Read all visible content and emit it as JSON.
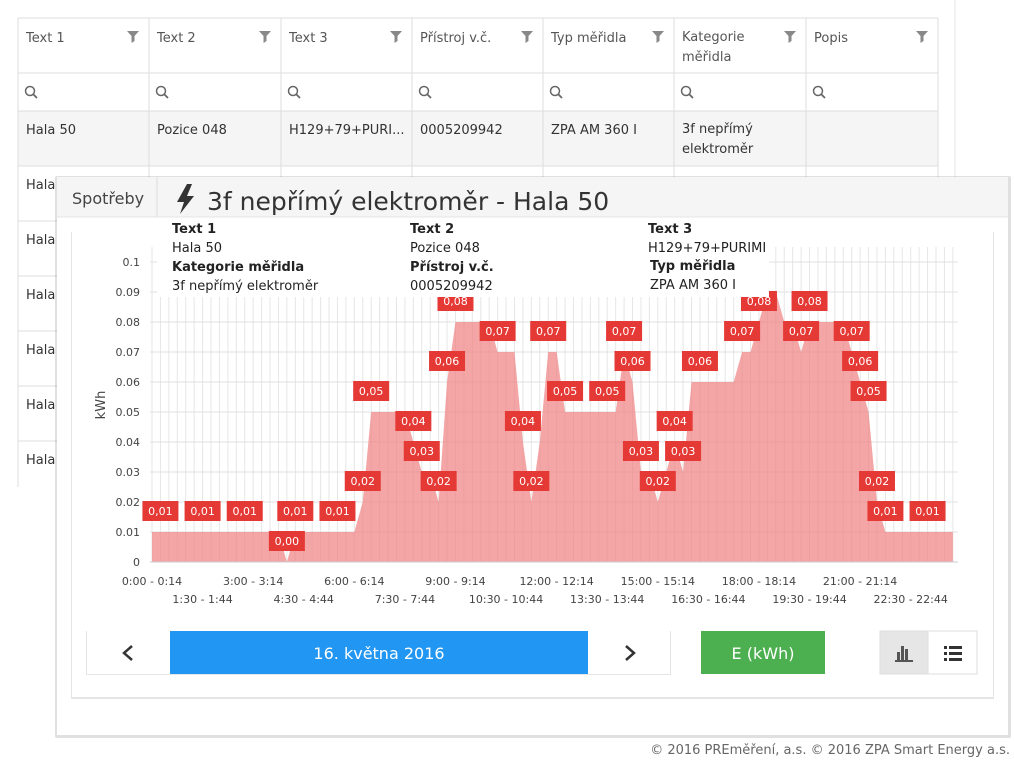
{
  "table": {
    "columns": [
      "Text 1",
      "Text 2",
      "Text 3",
      "Přístroj v.č.",
      "Typ měřidla",
      "Kategorie měřidla",
      "Popis"
    ],
    "rows": [
      [
        "Hala 50",
        "Pozice 048",
        "H129+79+PURI...",
        "0005209942",
        "ZPA AM 360 I",
        "3f nepřímý elektroměr"
      ],
      [
        "Hala"
      ],
      [
        "Hala"
      ],
      [
        "Hala"
      ],
      [
        "Hala"
      ],
      [
        "Hala"
      ],
      [
        "Hala"
      ]
    ]
  },
  "modal": {
    "tab": "Spotřeby",
    "title": "3f nepřímý elektroměr - Hala 50",
    "info": [
      {
        "label": "Text 1",
        "value": "Hala 50"
      },
      {
        "label": "Kategorie měřidla",
        "value": "3f nepřímý elektroměr"
      },
      {
        "label": "Text 2",
        "value": "Pozice 048"
      },
      {
        "label": "Přístroj v.č.",
        "value": "0005209942"
      },
      {
        "label": "Text 3",
        "value": "H129+79+PURIMI"
      },
      {
        "label": "Typ měřidla",
        "value": "ZPA AM 360 I"
      }
    ],
    "date": "16. května 2016",
    "unit_button": "E (kWh)"
  },
  "chart_data": {
    "type": "area",
    "y_label": "kWh",
    "color": "#f08080",
    "label_color": "#e53935",
    "grid": true,
    "ylim": [
      0,
      0.1
    ],
    "yticks": [
      0,
      0.01,
      0.02,
      0.03,
      0.04,
      0.05,
      0.06,
      0.07,
      0.08,
      0.09,
      0.1
    ],
    "categories": [
      "0:00 - 0:14",
      null,
      null,
      null,
      null,
      null,
      "1:30 - 1:44",
      null,
      null,
      null,
      null,
      null,
      "3:00 - 3:14",
      null,
      null,
      null,
      null,
      null,
      "4:30 - 4:44",
      null,
      null,
      null,
      null,
      null,
      "6:00 - 6:14",
      null,
      null,
      null,
      null,
      null,
      "7:30 - 7:44",
      null,
      null,
      null,
      null,
      null,
      "9:00 - 9:14",
      null,
      null,
      null,
      null,
      null,
      "10:30 - 10:44",
      null,
      null,
      null,
      null,
      null,
      "12:00 - 12:14",
      null,
      null,
      null,
      null,
      null,
      "13:30 - 13:44",
      null,
      null,
      null,
      null,
      null,
      "15:00 - 15:14",
      null,
      null,
      null,
      null,
      null,
      "16:30 - 16:44",
      null,
      null,
      null,
      null,
      null,
      "18:00 - 18:14",
      null,
      null,
      null,
      null,
      null,
      "19:30 - 19:44",
      null,
      null,
      null,
      null,
      null,
      "21:00 - 21:14",
      null,
      null,
      null,
      null,
      null,
      "22:30 - 22:44",
      null,
      null,
      null,
      null,
      null
    ],
    "values": [
      0.01,
      0.01,
      0.01,
      0.01,
      0.01,
      0.01,
      0.01,
      0.01,
      0.01,
      0.01,
      0.01,
      0.01,
      0.01,
      0.01,
      0.01,
      0.01,
      0,
      0.01,
      0.01,
      0.01,
      0.01,
      0.01,
      0.01,
      0.01,
      0.01,
      0.02,
      0.05,
      0.05,
      0.05,
      0.05,
      0.05,
      0.04,
      0.03,
      0.03,
      0.02,
      0.06,
      0.08,
      0.08,
      0.08,
      0.08,
      0.08,
      0.07,
      0.07,
      0.07,
      0.04,
      0.02,
      0.04,
      0.07,
      0.07,
      0.05,
      0.05,
      0.05,
      0.05,
      0.05,
      0.05,
      0.05,
      0.07,
      0.06,
      0.03,
      0.03,
      0.02,
      0.03,
      0.04,
      0.03,
      0.06,
      0.06,
      0.06,
      0.06,
      0.06,
      0.06,
      0.07,
      0.07,
      0.08,
      0.09,
      0.09,
      0.08,
      0.08,
      0.07,
      0.08,
      0.08,
      0.08,
      0.08,
      0.08,
      0.07,
      0.06,
      0.05,
      0.02,
      0.01,
      0.01,
      0.01,
      0.01,
      0.01,
      0.01,
      0.01,
      0.01,
      0.01
    ],
    "value_labels": [
      null,
      "0,01",
      null,
      null,
      null,
      null,
      "0,01",
      null,
      null,
      null,
      null,
      "0,01",
      null,
      null,
      null,
      null,
      "0,00",
      "0,01",
      null,
      null,
      null,
      null,
      "0,01",
      null,
      null,
      "0,02",
      "0,05",
      null,
      null,
      null,
      null,
      "0,04",
      "0,03",
      null,
      "0,02",
      "0,06",
      "0,08",
      null,
      null,
      null,
      null,
      "0,07",
      null,
      null,
      "0,04",
      "0,02",
      null,
      "0,07",
      null,
      "0,05",
      null,
      null,
      null,
      null,
      "0,05",
      null,
      "0,07",
      "0,06",
      "0,03",
      null,
      "0,02",
      null,
      "0,04",
      "0,03",
      null,
      "0,06",
      null,
      null,
      null,
      null,
      "0,07",
      null,
      "0,08",
      null,
      null,
      null,
      null,
      "0,07",
      "0,08",
      null,
      null,
      null,
      null,
      "0,07",
      "0,06",
      "0,05",
      "0,02",
      "0,01",
      null,
      null,
      null,
      null,
      "0,01",
      null,
      null,
      null
    ]
  },
  "footer": "© 2016 PREměření, a.s. © 2016 ZPA Smart Energy a.s."
}
